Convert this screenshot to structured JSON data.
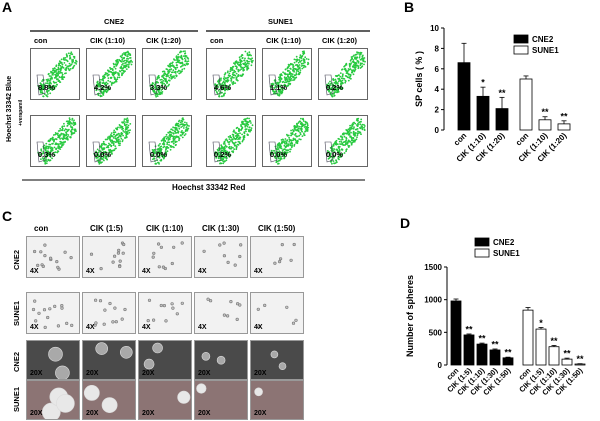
{
  "panel_a": {
    "letter": "A",
    "group_labels": [
      "CNE2",
      "SUNE1"
    ],
    "conditions": [
      "con",
      "CIK (1:10)",
      "CIK (1:20)",
      "con",
      "CIK (1:10)",
      "CIK (1:20)"
    ],
    "row1_pct": [
      "8.8%",
      "4.2%",
      "3.3%",
      "4.6%",
      "1.1%",
      "0.2%"
    ],
    "row2_pct": [
      "0.3%",
      "0.0%",
      "0.0%",
      "0.2%",
      "0.0%",
      "0.0%"
    ],
    "y_label": "Hoechst 33342 Blue",
    "row2_side_label": "+verapamil",
    "x_label": "Hoechst 33342 Red",
    "scatter_color": "#27c93f"
  },
  "panel_c": {
    "letter": "C",
    "conditions": [
      "con",
      "CIK (1:5)",
      "CIK (1:10)",
      "CIK (1:30)",
      "CIK (1:50)"
    ],
    "rows": [
      {
        "label": "CNE2",
        "mag": "4X"
      },
      {
        "label": "SUNE1",
        "mag": "4X"
      },
      {
        "label": "CNE2",
        "mag": "20X"
      },
      {
        "label": "SUNE1",
        "mag": "20X"
      }
    ]
  },
  "chart_data": [
    {
      "type": "bar",
      "panel": "B",
      "ylabel": "SP cells ( % )",
      "ylim": [
        0,
        10
      ],
      "yticks": [
        "0",
        "2",
        "4",
        "6",
        "8",
        "10"
      ],
      "categories": [
        "con",
        "CIK (1:10)",
        "CIK (1:20)"
      ],
      "series": [
        {
          "name": "CNE2",
          "values": [
            6.6,
            3.3,
            2.1
          ],
          "errors": [
            1.9,
            0.9,
            1.1
          ],
          "stars": [
            "",
            "*",
            "**"
          ],
          "color": "#000000"
        },
        {
          "name": "SUNE1",
          "values": [
            5.0,
            1.0,
            0.6
          ],
          "errors": [
            0.3,
            0.3,
            0.3
          ],
          "stars": [
            "",
            "**",
            "**"
          ],
          "color": "#ffffff"
        }
      ]
    },
    {
      "type": "bar",
      "panel": "D",
      "ylabel": "Number of spheres",
      "ylim": [
        0,
        1500
      ],
      "yticks": [
        "0",
        "500",
        "1000",
        "1500"
      ],
      "categories": [
        "con",
        "CIK (1:5)",
        "CIK (1:10)",
        "CIK (1:30)",
        "CIK (1:50)"
      ],
      "series": [
        {
          "name": "CNE2",
          "values": [
            980,
            460,
            320,
            230,
            110
          ],
          "errors": [
            30,
            15,
            15,
            15,
            10
          ],
          "stars": [
            "",
            "**",
            "**",
            "**",
            "**"
          ],
          "color": "#000000"
        },
        {
          "name": "SUNE1",
          "values": [
            840,
            550,
            280,
            90,
            15
          ],
          "errors": [
            40,
            25,
            20,
            15,
            5
          ],
          "stars": [
            "",
            "*",
            "**",
            "**",
            "**"
          ],
          "color": "#ffffff"
        }
      ]
    }
  ]
}
